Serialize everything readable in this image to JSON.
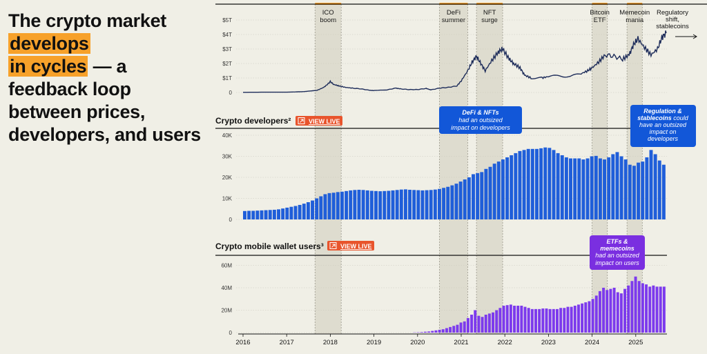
{
  "headline": {
    "p1": "The crypto market ",
    "h1": "develops",
    "h2": "in cycles",
    "p2": " — a feedback loop between prices, developers, and users"
  },
  "colors": {
    "background": "#f0efe6",
    "highlight": "#f7a12a",
    "price_line": "#1c2b59",
    "developers_bars": "#1f5ed9",
    "users_bars": "#7c3aed",
    "period_band": "#dedccf",
    "callout_blue": "#1257d8",
    "callout_purple": "#7a2fe0",
    "badge": "#e8542c"
  },
  "periods": [
    {
      "label_lines": [
        "ICO",
        "boom"
      ],
      "start": 2017.65,
      "end": 2018.25
    },
    {
      "label_lines": [
        "DeFi",
        "summer"
      ],
      "start": 2020.5,
      "end": 2021.15
    },
    {
      "label_lines": [
        "NFT",
        "surge"
      ],
      "start": 2021.35,
      "end": 2021.95
    },
    {
      "label_lines": [
        "Bitcoin",
        "ETF"
      ],
      "start": 2024.0,
      "end": 2024.35
    },
    {
      "label_lines": [
        "Memecoin",
        "mania"
      ],
      "start": 2024.8,
      "end": 2025.15
    }
  ],
  "market_cap_chart": {
    "end_annotation": [
      "Regulatory",
      "shift,",
      "stablecoins"
    ]
  },
  "developers_section": {
    "title": "Crypto developers²",
    "badge": "VIEW LIVE",
    "callouts": [
      {
        "bold": "DeFi & NFTs",
        "rest": [
          "had an outsized",
          "impact on developers"
        ]
      },
      {
        "bold": "Regulation &",
        "bold2": "stablecoins",
        "rest_first": " could",
        "rest": [
          "have an outsized",
          "impact on",
          "developers"
        ]
      }
    ]
  },
  "users_section": {
    "title": "Crypto mobile wallet users³",
    "badge": "VIEW LIVE",
    "callouts": [
      {
        "bold": "ETFs &",
        "bold2": "memecoins",
        "rest": [
          "had an outsized",
          "impact on users"
        ]
      }
    ]
  },
  "x_axis": {
    "ticks": [
      "2016",
      "2017",
      "2018",
      "2019",
      "2020",
      "2021",
      "2022",
      "2023",
      "2024",
      "2025"
    ]
  },
  "chart_data": [
    {
      "type": "line",
      "ylabel_ticks": [
        "0",
        "$1T",
        "$2T",
        "$3T",
        "$4T",
        "$5T"
      ],
      "ylim": [
        0,
        5
      ],
      "unit": "T",
      "x": [
        2016.0,
        2016.5,
        2017.0,
        2017.4,
        2017.7,
        2017.85,
        2017.95,
        2018.0,
        2018.08,
        2018.2,
        2018.35,
        2018.5,
        2018.7,
        2018.9,
        2019.0,
        2019.3,
        2019.5,
        2019.6,
        2019.8,
        2020.0,
        2020.2,
        2020.3,
        2020.5,
        2020.7,
        2020.9,
        2021.0,
        2021.15,
        2021.25,
        2021.35,
        2021.45,
        2021.55,
        2021.7,
        2021.85,
        2021.95,
        2022.1,
        2022.2,
        2022.35,
        2022.45,
        2022.6,
        2022.85,
        2023.0,
        2023.25,
        2023.5,
        2023.75,
        2023.9,
        2024.0,
        2024.15,
        2024.3,
        2024.5,
        2024.7,
        2024.85,
        2024.95,
        2025.05,
        2025.2,
        2025.35,
        2025.5,
        2025.6,
        2025.7
      ],
      "y": [
        0.01,
        0.02,
        0.02,
        0.06,
        0.15,
        0.35,
        0.6,
        0.75,
        0.55,
        0.45,
        0.35,
        0.3,
        0.25,
        0.15,
        0.13,
        0.18,
        0.3,
        0.25,
        0.2,
        0.2,
        0.28,
        0.18,
        0.3,
        0.35,
        0.45,
        0.8,
        1.5,
        2.1,
        2.5,
        2.0,
        1.5,
        2.2,
        2.8,
        3.0,
        2.3,
        2.0,
        1.7,
        1.2,
        1.0,
        1.0,
        1.1,
        1.15,
        1.1,
        1.3,
        1.5,
        1.7,
        2.1,
        2.6,
        2.5,
        2.3,
        2.6,
        3.3,
        3.7,
        3.1,
        2.6,
        3.0,
        3.8,
        4.1
      ]
    },
    {
      "type": "bar",
      "series": [
        {
          "name": "Crypto developers",
          "values": [
            4000,
            4100,
            4100,
            4200,
            4300,
            4400,
            4500,
            4600,
            4800,
            5200,
            5600,
            6000,
            6400,
            6900,
            7500,
            8200,
            9000,
            10000,
            11000,
            12000,
            12500,
            12700,
            13000,
            13200,
            13500,
            13800,
            14000,
            14100,
            14000,
            13800,
            13600,
            13500,
            13400,
            13500,
            13600,
            13800,
            14000,
            14200,
            14300,
            14100,
            14000,
            13900,
            13800,
            13900,
            14000,
            14200,
            14500,
            15000,
            15500,
            16200,
            17000,
            18000,
            19000,
            20000,
            21500,
            22000,
            22500,
            24000,
            25000,
            26500,
            27500,
            28500,
            29500,
            30500,
            31500,
            32500,
            33000,
            33500,
            33500,
            33500,
            33800,
            34200,
            34000,
            33000,
            31500,
            30500,
            29500,
            29000,
            29000,
            29000,
            28500,
            29000,
            30000,
            30200,
            29000,
            28500,
            29500,
            31000,
            32000,
            30000,
            28500,
            26000,
            25500,
            27000,
            27500,
            29500,
            33000,
            31000,
            28000,
            26000
          ]
        }
      ],
      "ylabel_ticks": [
        "0",
        "10K",
        "20K",
        "30K",
        "40K"
      ],
      "ylim": [
        0,
        40000
      ],
      "x_start": 2016.0,
      "x_end": 2025.7
    },
    {
      "type": "bar",
      "series": [
        {
          "name": "Crypto mobile wallet users",
          "values": [
            0.2,
            0.3,
            0.5,
            0.8,
            1,
            1.5,
            2,
            2.5,
            3,
            4,
            5,
            6,
            7,
            9,
            10,
            13,
            16,
            20,
            15,
            14,
            16,
            17,
            18,
            20,
            22,
            24,
            24.5,
            25,
            24,
            24,
            24,
            23,
            22,
            21,
            21,
            21,
            21.5,
            21.5,
            21,
            21,
            21,
            22,
            22,
            23,
            23,
            24,
            25,
            26,
            27,
            28,
            30,
            33,
            37,
            40,
            38,
            39,
            40,
            36,
            35,
            39,
            42,
            46,
            50,
            46,
            44,
            43,
            41,
            42,
            41,
            41,
            41
          ]
        }
      ],
      "ylabel_ticks": [
        "0",
        "20M",
        "40M",
        "60M"
      ],
      "ylim": [
        0,
        60
      ],
      "unit": "M",
      "x_start": 2019.9,
      "x_end": 2025.7
    }
  ]
}
